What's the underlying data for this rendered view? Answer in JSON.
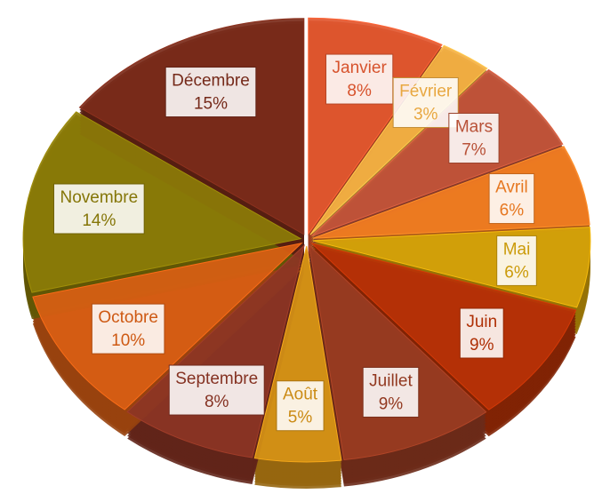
{
  "chart_data": {
    "type": "pie",
    "categories": [
      "Janvier",
      "Février",
      "Mars",
      "Avril",
      "Mai",
      "Juin",
      "Juillet",
      "Août",
      "Septembre",
      "Octobre",
      "Novembre",
      "Décembre"
    ],
    "values": [
      8,
      3,
      7,
      6,
      6,
      9,
      9,
      5,
      8,
      10,
      14,
      15
    ],
    "value_labels": [
      "8%",
      "3%",
      "7%",
      "6%",
      "6%",
      "9%",
      "9%",
      "5%",
      "8%",
      "10%",
      "14%",
      "15%"
    ],
    "colors": [
      "#e2572f",
      "#f4b043",
      "#c2553a",
      "#f27d22",
      "#d6a30a",
      "#b83206",
      "#9a3c22",
      "#d69216",
      "#8c3524",
      "#d95e14",
      "#8c7c08",
      "#7b2b1a"
    ]
  }
}
